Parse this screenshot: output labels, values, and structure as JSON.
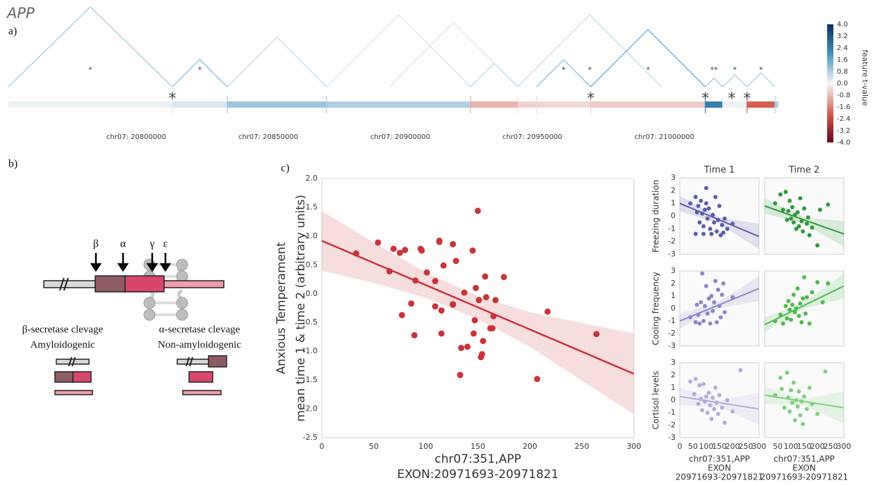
{
  "figure_title": "APP",
  "panel_labels": {
    "a": "a)",
    "b": "b)",
    "c": "c)"
  },
  "diagram": {
    "cleavage_sites": [
      "β",
      "α",
      "γ",
      "ε"
    ],
    "left": {
      "title": "β-secretase clevage",
      "subtitle": "Amyloidogenic"
    },
    "right": {
      "title": "α-secretase clevage",
      "subtitle": "Non-amyloidogenic"
    }
  },
  "chart_data": [
    {
      "type": "genome-track",
      "xlim": [
        20751600,
        21043200
      ],
      "xticks": [
        {
          "value": 20800000,
          "label": "chr07: 20800000"
        },
        {
          "value": 20850000,
          "label": "chr07: 20850000"
        },
        {
          "value": 20900000,
          "label": "chr07: 20900000"
        },
        {
          "value": 20950000,
          "label": "chr07: 20950000"
        },
        {
          "value": 21000000,
          "label": "chr07: 21000000"
        }
      ],
      "segments": [
        {
          "start": 20751600,
          "end": 20813700,
          "value": 0.1
        },
        {
          "start": 20813700,
          "end": 20834500,
          "value": 0.3
        },
        {
          "start": 20834500,
          "end": 20872100,
          "value": 1.0
        },
        {
          "start": 20872100,
          "end": 20926600,
          "value": 0.8
        },
        {
          "start": 20926600,
          "end": 20944500,
          "value": -0.9
        },
        {
          "start": 20944500,
          "end": 20951600,
          "value": -0.5
        },
        {
          "start": 20951600,
          "end": 20972100,
          "value": -0.4
        },
        {
          "start": 20972100,
          "end": 21015500,
          "value": -0.6
        },
        {
          "start": 21015500,
          "end": 21022100,
          "value": 2.4
        },
        {
          "start": 21022100,
          "end": 21031300,
          "value": 0.1
        },
        {
          "start": 21031300,
          "end": 21041900,
          "value": -2.0
        },
        {
          "start": 21041900,
          "end": 21043200,
          "value": 0.8
        }
      ],
      "junctions": [
        {
          "start": 20751600,
          "end": 20813700,
          "value": 0.9,
          "label": "*"
        },
        {
          "start": 20813700,
          "end": 20834500,
          "value": 1.2,
          "label": "*"
        },
        {
          "start": 20834500,
          "end": 20872100,
          "value": 0.6
        },
        {
          "start": 20872100,
          "end": 20926600,
          "value": 0.4
        },
        {
          "start": 20895800,
          "end": 20944500,
          "value": 0.3
        },
        {
          "start": 20926600,
          "end": 20944500,
          "value": 0.6
        },
        {
          "start": 20951600,
          "end": 20972100,
          "value": 1.2,
          "label": "*"
        },
        {
          "start": 20944500,
          "end": 20999000,
          "value": 0.5,
          "label": "*"
        },
        {
          "start": 20972100,
          "end": 21015500,
          "value": 1.6,
          "label": "*"
        },
        {
          "start": 21015500,
          "end": 21022100,
          "value": 1.0,
          "label": "**"
        },
        {
          "start": 21022100,
          "end": 21031300,
          "value": 0.8,
          "label": "*"
        },
        {
          "start": 21031300,
          "end": 21041900,
          "value": 0.8,
          "label": "*"
        }
      ],
      "markers": [
        {
          "position": 20813700,
          "label": "*"
        },
        {
          "position": 20972100,
          "label": "*"
        },
        {
          "position": 21015500,
          "label": "*"
        },
        {
          "position": 21025500,
          "label": "*"
        },
        {
          "position": 21031300,
          "label": "*"
        }
      ],
      "colorbar": {
        "label": "feature t-value",
        "lim": [
          -4,
          4
        ],
        "ticks": [
          {
            "value": 4,
            "label": "4.0"
          },
          3.2,
          2.4,
          1.6,
          0.8,
          {
            "value": 0,
            "label": "0.0"
          },
          -0.8,
          -1.6,
          -2.4,
          -3.2,
          {
            "value": -4,
            "label": "-4.0"
          }
        ]
      }
    },
    {
      "type": "scatter",
      "xlabel": [
        "chr07:351,APP",
        "EXON:20971693-20971821"
      ],
      "ylabel": [
        "Anxious Temperament",
        "mean time 1 & time 2 (arbitrary units)"
      ],
      "xlim": [
        0,
        300
      ],
      "ylim": [
        -2.5,
        2.0
      ],
      "xticks": [
        0,
        50,
        100,
        150,
        200,
        250,
        300
      ],
      "yticks": [
        {
          "value": 2,
          "label": "2.0"
        },
        1.5,
        {
          "value": 1,
          "label": "1.0"
        },
        0.5,
        {
          "value": 0,
          "label": "0.0"
        },
        -0.5,
        {
          "value": -1,
          "label": "-1.0"
        },
        -1.5,
        {
          "value": -2,
          "label": "-2.0"
        },
        -2.5
      ],
      "color": "#c8343a",
      "x": [
        33,
        54,
        69,
        65,
        75,
        80,
        95,
        96,
        113,
        113,
        126,
        150,
        90,
        101,
        109,
        117,
        129,
        145,
        157,
        175,
        77,
        86,
        89,
        109,
        115,
        126,
        126,
        137,
        148,
        151,
        158,
        167,
        115,
        147,
        146,
        140,
        134,
        155,
        154,
        153,
        162,
        165,
        164,
        133,
        207,
        217,
        264
      ],
      "values": [
        0.7,
        0.89,
        0.78,
        0.39,
        0.71,
        0.76,
        0.78,
        0.75,
        0.9,
        0.92,
        0.86,
        1.44,
        0.23,
        0.37,
        0.22,
        0.49,
        0.57,
        0.75,
        0.3,
        0.29,
        -0.37,
        -0.17,
        -0.72,
        -0.22,
        -0.29,
        -0.18,
        -0.19,
        0.02,
        0.1,
        -0.11,
        -0.06,
        -0.11,
        -0.69,
        -0.46,
        -0.69,
        -0.92,
        -0.94,
        -0.82,
        -1.05,
        -1.1,
        -0.6,
        -0.39,
        -0.6,
        -1.41,
        -1.48,
        -0.31,
        -0.7
      ],
      "fit": {
        "x": [
          0,
          300
        ],
        "values": [
          0.92,
          -1.39
        ]
      },
      "band": {
        "x": [
          0,
          50,
          100,
          150,
          200,
          250,
          300
        ],
        "upper": [
          1.44,
          0.89,
          0.37,
          -0.04,
          -0.32,
          -0.51,
          -0.69
        ],
        "lower": [
          0.4,
          0.19,
          -0.07,
          -0.44,
          -0.92,
          -1.51,
          -2.09
        ]
      }
    },
    {
      "type": "scatter",
      "title": "Time 1",
      "ylabel": [
        "Freezing duration"
      ],
      "xlim": [
        0,
        300
      ],
      "ylim": [
        -3,
        3
      ],
      "yticks": [
        3,
        2,
        1,
        0,
        -1,
        -2,
        -3
      ],
      "color": "#5b5ea8",
      "x": [
        40,
        60,
        65,
        70,
        75,
        80,
        85,
        90,
        95,
        100,
        100,
        105,
        110,
        115,
        120,
        125,
        130,
        135,
        140,
        145,
        150,
        155,
        160,
        165,
        170,
        180,
        200,
        60,
        90
      ],
      "values": [
        1.0,
        1.5,
        0.3,
        0.8,
        -0.5,
        1.2,
        0.2,
        -0.8,
        0.5,
        2.2,
        1.0,
        -0.2,
        0.6,
        -1.0,
        -1.4,
        0.1,
        -0.5,
        1.5,
        -1.2,
        -0.3,
        0.8,
        -1.5,
        -0.7,
        -1.3,
        -0.2,
        -1.0,
        -0.6,
        -1.4,
        -1.4
      ],
      "fit": {
        "x": [
          0,
          300
        ],
        "values": [
          1.0,
          -1.6
        ]
      },
      "band": {
        "x": [
          0,
          150,
          300
        ],
        "upper": [
          1.6,
          -0.1,
          -0.6
        ],
        "lower": [
          0.4,
          -0.6,
          -2.6
        ]
      }
    },
    {
      "type": "scatter",
      "title": "Time 2",
      "xlim": [
        0,
        300
      ],
      "ylim": [
        -3,
        3
      ],
      "color": "#2e9a3a",
      "x": [
        40,
        60,
        70,
        80,
        85,
        90,
        95,
        100,
        105,
        110,
        115,
        120,
        125,
        130,
        135,
        140,
        145,
        150,
        160,
        165,
        170,
        180,
        200,
        210,
        240
      ],
      "values": [
        1.0,
        1.7,
        0.5,
        1.9,
        -0.3,
        0.4,
        1.2,
        -0.2,
        0.7,
        -0.5,
        0.1,
        -1.0,
        0.3,
        -0.8,
        1.4,
        -0.4,
        -1.2,
        0.6,
        -0.6,
        -0.1,
        -1.5,
        -0.9,
        -2.3,
        0.5,
        0.9
      ],
      "fit": {
        "x": [
          0,
          300
        ],
        "values": [
          0.8,
          -1.4
        ]
      },
      "band": {
        "x": [
          0,
          150,
          300
        ],
        "upper": [
          1.4,
          -0.1,
          -0.4
        ],
        "lower": [
          0.2,
          -0.6,
          -2.4
        ]
      }
    },
    {
      "type": "scatter",
      "ylabel": [
        "Cooing frequency"
      ],
      "xlim": [
        0,
        300
      ],
      "ylim": [
        -3,
        3
      ],
      "yticks": [
        3,
        2,
        1,
        0,
        -1,
        -2,
        -3
      ],
      "color": "#8b87c8",
      "x": [
        40,
        60,
        65,
        70,
        75,
        80,
        85,
        90,
        95,
        100,
        105,
        110,
        115,
        120,
        125,
        130,
        135,
        140,
        145,
        150,
        155,
        160,
        165,
        170,
        200
      ],
      "values": [
        -0.7,
        -1.1,
        0.3,
        -0.5,
        -1.2,
        0.5,
        2.8,
        -1.0,
        0.2,
        1.8,
        -0.4,
        0.8,
        -1.2,
        1.0,
        -0.2,
        0.5,
        2.2,
        -1.1,
        1.5,
        0.2,
        -0.7,
        1.1,
        2.0,
        -0.3,
        0.9
      ],
      "fit": {
        "x": [
          0,
          300
        ],
        "values": [
          -1.0,
          1.6
        ]
      },
      "band": {
        "x": [
          0,
          150,
          300
        ],
        "upper": [
          -0.4,
          0.55,
          2.6
        ],
        "lower": [
          -1.6,
          0.05,
          0.6
        ]
      }
    },
    {
      "type": "scatter",
      "xlim": [
        0,
        300
      ],
      "ylim": [
        -3,
        3
      ],
      "color": "#4fb84f",
      "x": [
        40,
        60,
        70,
        80,
        85,
        90,
        95,
        100,
        105,
        110,
        115,
        120,
        125,
        130,
        135,
        140,
        145,
        150,
        155,
        160,
        170,
        180,
        200,
        220,
        240
      ],
      "values": [
        -1.0,
        -0.5,
        -1.2,
        0.2,
        -0.8,
        0.6,
        -0.1,
        -0.9,
        0.3,
        1.1,
        -0.3,
        0.0,
        1.6,
        -0.6,
        0.4,
        -1.1,
        0.8,
        2.5,
        -0.4,
        0.9,
        -1.2,
        1.3,
        2.1,
        0.5,
        2.0
      ],
      "fit": {
        "x": [
          0,
          300
        ],
        "values": [
          -1.3,
          1.8
        ]
      },
      "band": {
        "x": [
          0,
          150,
          300
        ],
        "upper": [
          -0.7,
          0.5,
          2.8
        ],
        "lower": [
          -1.9,
          0.0,
          0.8
        ]
      }
    },
    {
      "type": "scatter",
      "ylabel": [
        "Cortisol levels"
      ],
      "xlabel": [
        "chr07:351,APP",
        "EXON",
        "20971693-20971821"
      ],
      "xlim": [
        0,
        300
      ],
      "ylim": [
        -3,
        3
      ],
      "xticks": [
        0,
        50,
        100,
        150,
        200,
        250,
        300
      ],
      "yticks": [
        3,
        2,
        1,
        0,
        -1,
        -2,
        -3
      ],
      "color": "#b1addc",
      "x": [
        40,
        55,
        60,
        70,
        75,
        80,
        85,
        90,
        95,
        100,
        105,
        110,
        115,
        120,
        125,
        130,
        135,
        140,
        145,
        150,
        160,
        170,
        180,
        230,
        200
      ],
      "values": [
        1.5,
        0.5,
        1.7,
        -0.3,
        1.2,
        0.1,
        -0.8,
        1.3,
        -0.1,
        0.3,
        -1.0,
        0.6,
        -0.4,
        -1.5,
        0.2,
        -0.7,
        1.0,
        -0.2,
        -1.1,
        0.4,
        -0.6,
        -1.8,
        0.0,
        2.4,
        -0.9
      ],
      "fit": {
        "x": [
          0,
          300
        ],
        "values": [
          0.3,
          -0.7
        ]
      },
      "band": {
        "x": [
          0,
          150,
          300
        ],
        "upper": [
          1.0,
          0.0,
          0.6
        ],
        "lower": [
          -0.4,
          -0.5,
          -2.0
        ]
      }
    },
    {
      "type": "scatter",
      "xlabel": [
        "chr07:351,APP",
        "EXON",
        "20971693-20971821"
      ],
      "xlim": [
        0,
        300
      ],
      "ylim": [
        -3,
        3
      ],
      "xticks": [
        50,
        100,
        150,
        200,
        250,
        300
      ],
      "color": "#7fcf7f",
      "x": [
        40,
        60,
        65,
        75,
        85,
        90,
        95,
        100,
        105,
        110,
        115,
        120,
        125,
        130,
        135,
        140,
        145,
        150,
        160,
        170,
        180,
        200,
        230
      ],
      "values": [
        0.4,
        1.8,
        0.9,
        -0.6,
        2.2,
        0.2,
        -0.9,
        0.8,
        -0.2,
        1.4,
        -1.6,
        0.0,
        -0.5,
        0.7,
        -1.2,
        -0.1,
        -1.9,
        0.3,
        -0.7,
        1.0,
        -0.3,
        -1.1,
        2.3
      ],
      "fit": {
        "x": [
          0,
          300
        ],
        "values": [
          0.4,
          -0.6
        ]
      },
      "band": {
        "x": [
          0,
          150,
          300
        ],
        "upper": [
          1.1,
          0.1,
          0.7
        ],
        "lower": [
          -0.3,
          -0.4,
          -1.9
        ]
      }
    }
  ]
}
